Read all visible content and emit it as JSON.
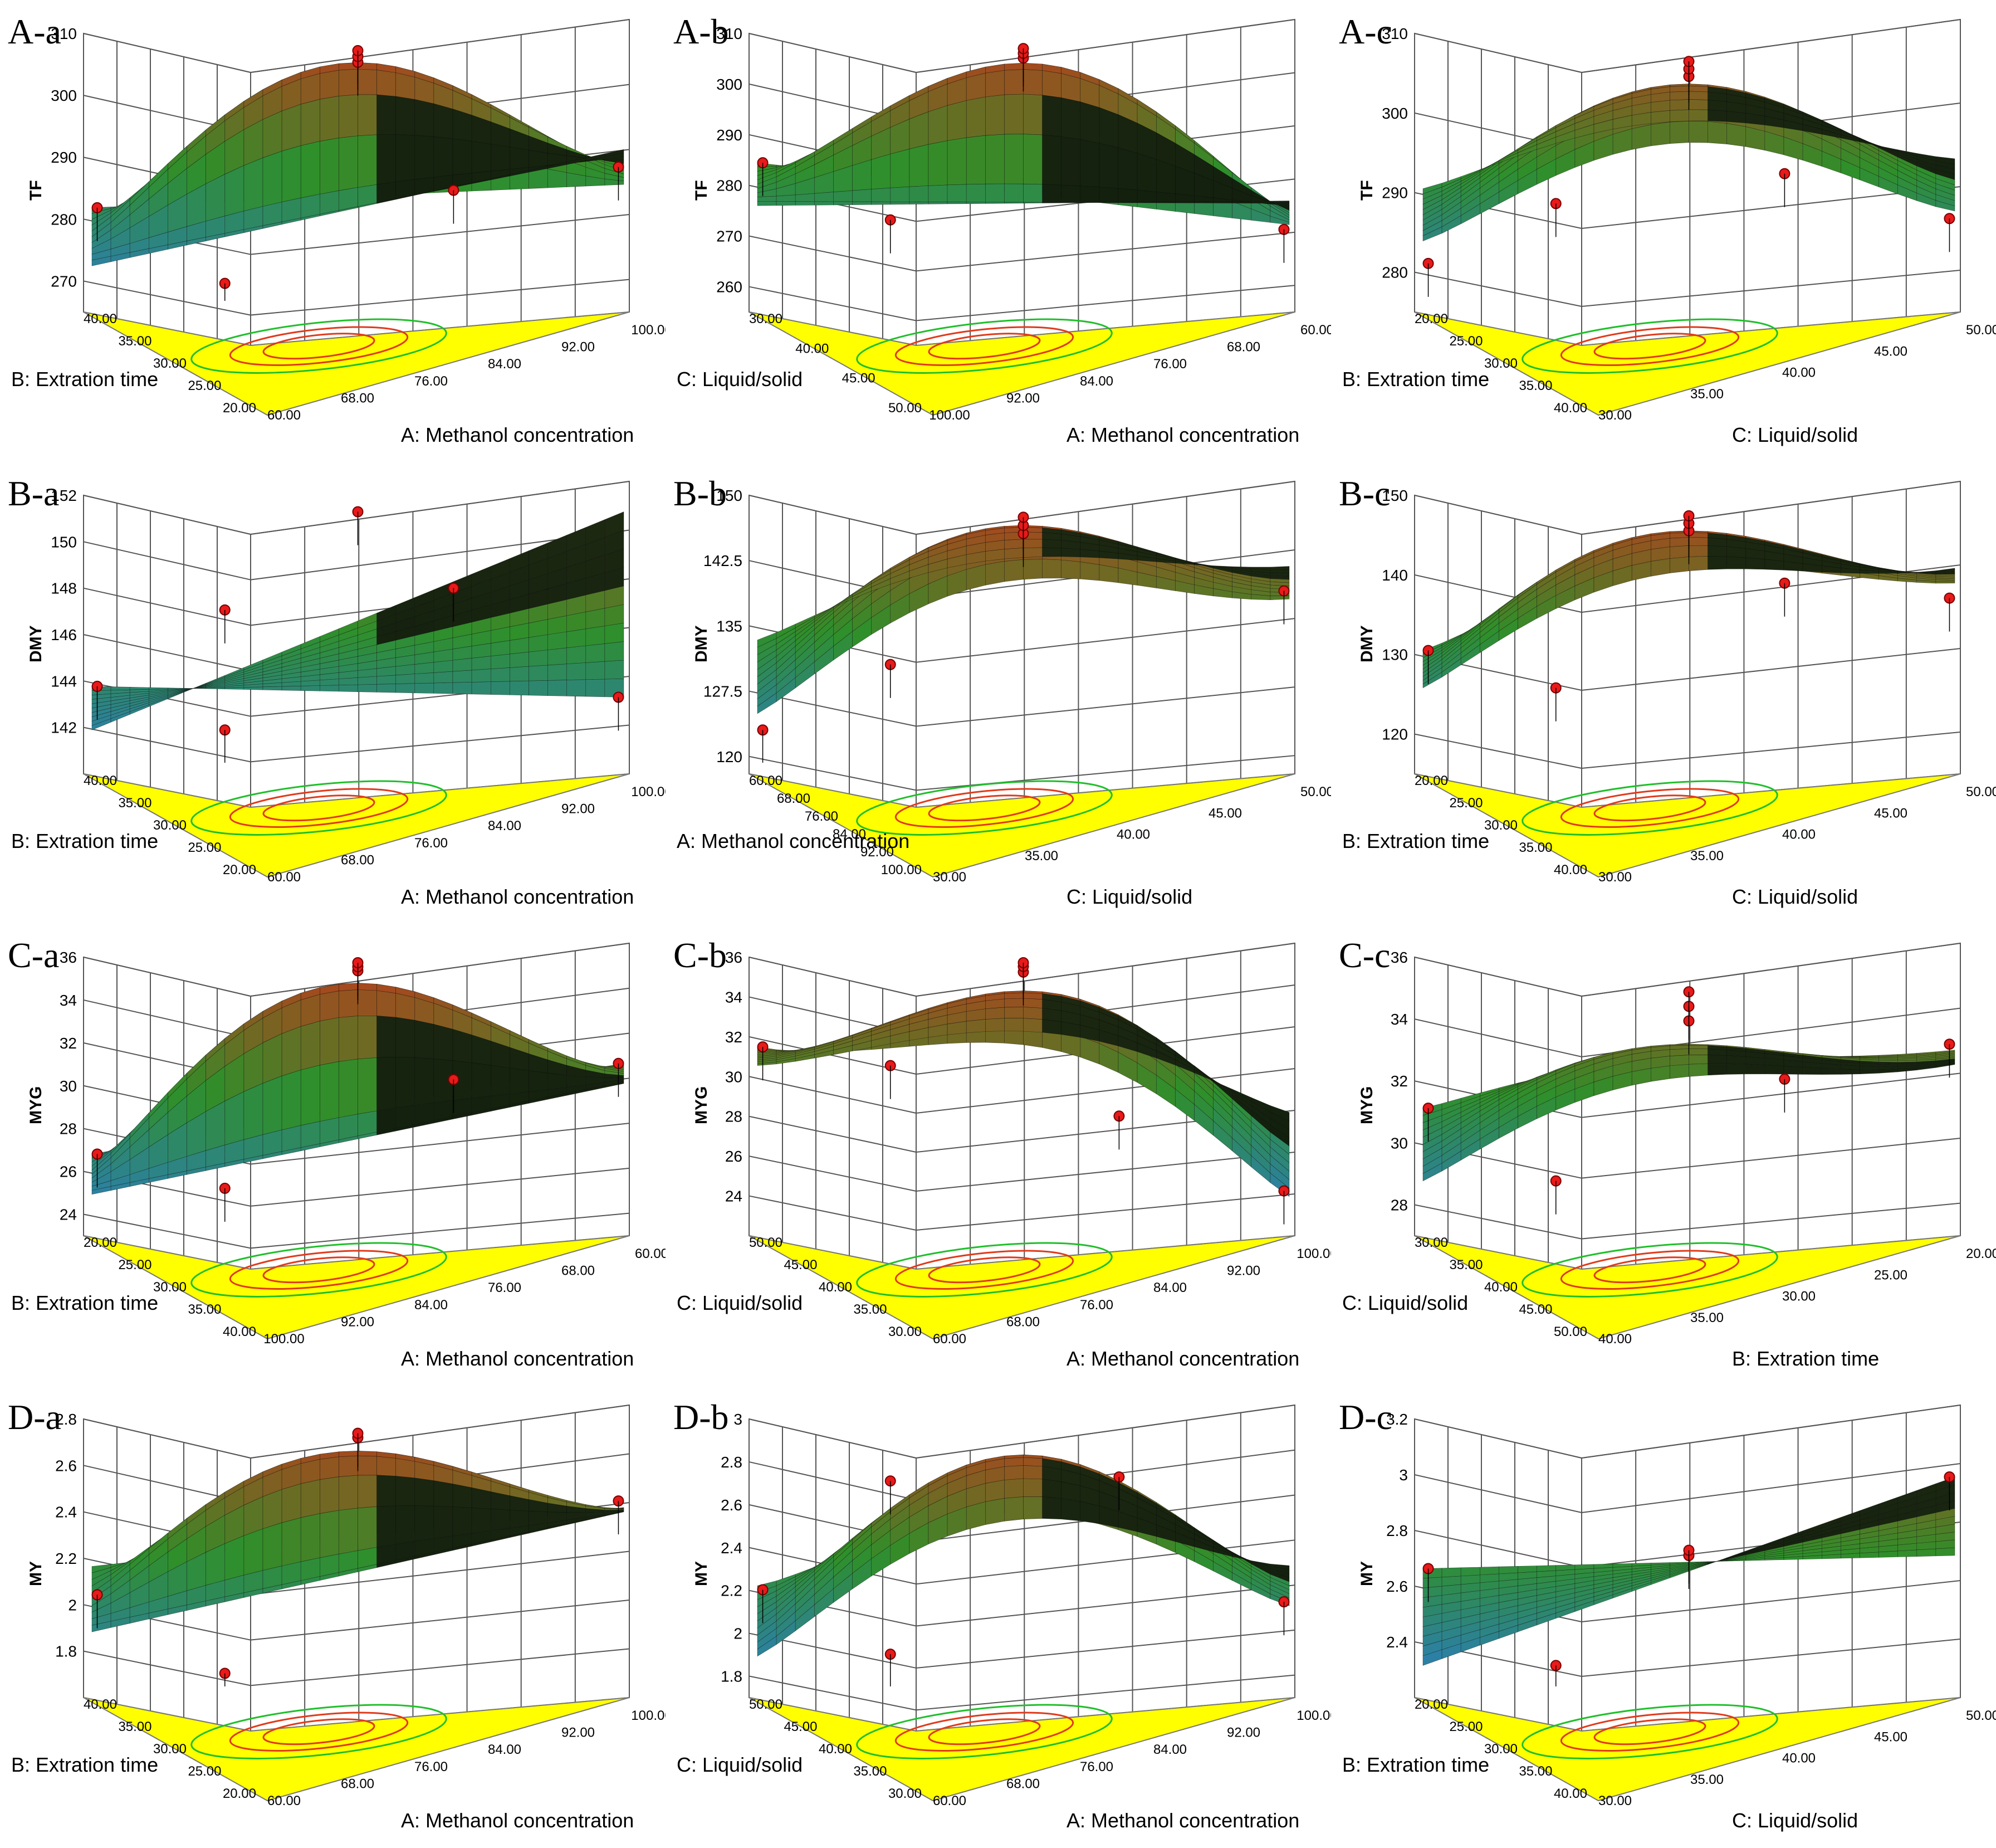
{
  "figure": {
    "colors": {
      "contour_floor": "#ffff00",
      "contour_inner": "#e03a1a",
      "contour_outer": "#1fbf2a",
      "design_point": "#e81a1a",
      "surface_high": "#c0391b",
      "surface_mid": "#2f8f2a",
      "surface_low": "#2b7cc8"
    }
  },
  "chart_data": [
    {
      "id": "A-a",
      "type": "surface3d",
      "zlabel": "TF",
      "ztick_labels": [
        "310",
        "300",
        "290",
        "280",
        "270"
      ],
      "zlim": [
        265,
        310
      ],
      "left_axis": {
        "label": "B: Extration time",
        "ticks": [
          "40.00",
          "35.00",
          "30.00",
          "25.00",
          "20.00"
        ]
      },
      "right_axis": {
        "label": "A: Methanol concentration",
        "ticks": [
          "60.00",
          "68.00",
          "76.00",
          "84.00",
          "92.00",
          "100.00"
        ]
      },
      "surface": {
        "kind": "saddle",
        "peak": 306,
        "corners": [
          281,
          271,
          291,
          285
        ]
      },
      "design_points": [
        281,
        268,
        306,
        307,
        308,
        284,
        288
      ]
    },
    {
      "id": "A-b",
      "type": "surface3d",
      "zlabel": "TF",
      "ztick_labels": [
        "310",
        "300",
        "290",
        "280",
        "270",
        "260"
      ],
      "zlim": [
        255,
        310
      ],
      "left_axis": {
        "label": "C: Liquid/solid",
        "ticks": [
          "30.00",
          "40.00",
          "45.00",
          "50.00"
        ]
      },
      "right_axis": {
        "label": "A: Methanol concentration",
        "ticks": [
          "100.00",
          "92.00",
          "84.00",
          "76.00",
          "68.00",
          "60.00"
        ]
      },
      "surface": {
        "kind": "saddle",
        "peak": 305,
        "corners": [
          284,
          275,
          276,
          271
        ]
      },
      "design_points": [
        284,
        272,
        306,
        307,
        308,
        270
      ]
    },
    {
      "id": "A-c",
      "type": "surface3d",
      "zlabel": "TF",
      "ztick_labels": [
        "310",
        "300",
        "290",
        "280"
      ],
      "zlim": [
        275,
        310
      ],
      "left_axis": {
        "label": "B: Extration time",
        "ticks": [
          "20.00",
          "25.00",
          "30.00",
          "35.00",
          "40.00"
        ]
      },
      "right_axis": {
        "label": "C: Liquid/solid",
        "ticks": [
          "30.00",
          "35.00",
          "40.00",
          "45.00",
          "50.00"
        ]
      },
      "surface": {
        "kind": "dome",
        "peak": 304,
        "corners": [
          283,
          290,
          294,
          287
        ]
      },
      "design_points": [
        280,
        288,
        305,
        306,
        307,
        292,
        286
      ]
    },
    {
      "id": "B-a",
      "type": "surface3d",
      "zlabel": "DMY",
      "ztick_labels": [
        "152",
        "150",
        "148",
        "146",
        "144",
        "142"
      ],
      "zlim": [
        140,
        152
      ],
      "left_axis": {
        "label": "B: Extration time",
        "ticks": [
          "40.00",
          "35.00",
          "30.00",
          "25.00",
          "20.00"
        ]
      },
      "right_axis": {
        "label": "A: Methanol concentration",
        "ticks": [
          "60.00",
          "68.00",
          "76.00",
          "84.00",
          "92.00",
          "100.00"
        ]
      },
      "surface": {
        "kind": "ridge",
        "peak": 151.5,
        "corners": [
          143.5,
          141.5,
          151.5,
          143
        ]
      },
      "design_points": [
        143.5,
        141.5,
        147,
        148,
        151.5,
        143
      ]
    },
    {
      "id": "B-b",
      "type": "surface3d",
      "zlabel": "DMY",
      "ztick_labels": [
        "150",
        "142.5",
        "135",
        "127.5",
        "120"
      ],
      "zlim": [
        118,
        150
      ],
      "left_axis": {
        "label": "A: Methanol concentration",
        "ticks": [
          "60.00",
          "68.00",
          "76.00",
          "84.00",
          "92.00",
          "100.00"
        ]
      },
      "right_axis": {
        "label": "C: Liquid/solid",
        "ticks": [
          "30.00",
          "35.00",
          "40.00",
          "45.00",
          "50.00"
        ]
      },
      "surface": {
        "kind": "dome",
        "peak": 147,
        "corners": [
          124,
          133,
          142,
          138
        ]
      },
      "design_points": [
        122,
        130,
        146,
        147,
        148,
        139
      ]
    },
    {
      "id": "B-c",
      "type": "surface3d",
      "zlabel": "DMY",
      "ztick_labels": [
        "150",
        "140",
        "130",
        "120"
      ],
      "zlim": [
        115,
        150
      ],
      "left_axis": {
        "label": "B: Extration time",
        "ticks": [
          "20.00",
          "25.00",
          "30.00",
          "35.00",
          "40.00"
        ]
      },
      "right_axis": {
        "label": "C: Liquid/solid",
        "ticks": [
          "30.00",
          "35.00",
          "40.00",
          "45.00",
          "50.00"
        ]
      },
      "surface": {
        "kind": "dome",
        "peak": 146,
        "corners": [
          130,
          125,
          141,
          139
        ]
      },
      "design_points": [
        130,
        125,
        146,
        147,
        148,
        139,
        137
      ]
    },
    {
      "id": "C-a",
      "type": "surface3d",
      "zlabel": "MYG",
      "ztick_labels": [
        "36",
        "34",
        "32",
        "30",
        "28",
        "26",
        "24"
      ],
      "zlim": [
        23,
        36
      ],
      "left_axis": {
        "label": "B: Extration time",
        "ticks": [
          "20.00",
          "25.00",
          "30.00",
          "35.00",
          "40.00"
        ]
      },
      "right_axis": {
        "label": "A: Methanol concentration",
        "ticks": [
          "100.00",
          "92.00",
          "84.00",
          "76.00",
          "68.00",
          "60.00"
        ]
      },
      "surface": {
        "kind": "saddle",
        "peak": 35,
        "corners": [
          26.5,
          24.5,
          30,
          31
        ]
      },
      "design_points": [
        26.5,
        24.8,
        35.6,
        35.8,
        36,
        30.2,
        31
      ]
    },
    {
      "id": "C-b",
      "type": "surface3d",
      "zlabel": "MYG",
      "ztick_labels": [
        "36",
        "34",
        "32",
        "30",
        "28",
        "26",
        "24"
      ],
      "zlim": [
        22,
        36
      ],
      "left_axis": {
        "label": "C: Liquid/solid",
        "ticks": [
          "50.00",
          "45.00",
          "40.00",
          "35.00",
          "30.00"
        ]
      },
      "right_axis": {
        "label": "A: Methanol concentration",
        "ticks": [
          "60.00",
          "68.00",
          "76.00",
          "84.00",
          "92.00",
          "100.00"
        ]
      },
      "surface": {
        "kind": "dome",
        "peak": 34.5,
        "corners": [
          31.5,
          30.5,
          28,
          23.5
        ]
      },
      "design_points": [
        31.5,
        30.5,
        35.5,
        35.8,
        36,
        27.8,
        23.8
      ]
    },
    {
      "id": "C-c",
      "type": "surface3d",
      "zlabel": "MYG",
      "ztick_labels": [
        "36",
        "34",
        "32",
        "30",
        "28"
      ],
      "zlim": [
        27,
        36
      ],
      "left_axis": {
        "label": "C: Liquid/solid",
        "ticks": [
          "30.00",
          "35.00",
          "40.00",
          "45.00",
          "50.00"
        ]
      },
      "right_axis": {
        "label": "B: Extration time",
        "ticks": [
          "40.00",
          "35.00",
          "30.00",
          "25.00",
          "20.00"
        ]
      },
      "surface": {
        "kind": "dome",
        "peak": 33.2,
        "corners": [
          31,
          28.5,
          32.5,
          33
        ]
      },
      "design_points": [
        31,
        28.5,
        34,
        34.5,
        35,
        32,
        33.2
      ]
    },
    {
      "id": "D-a",
      "type": "surface3d",
      "zlabel": "MY",
      "ztick_labels": [
        "2.8",
        "2.6",
        "2.4",
        "2.2",
        "2",
        "1.8"
      ],
      "zlim": [
        1.6,
        2.8
      ],
      "left_axis": {
        "label": "B: Extration time",
        "ticks": [
          "40.00",
          "35.00",
          "30.00",
          "25.00",
          "20.00"
        ]
      },
      "right_axis": {
        "label": "A: Methanol concentration",
        "ticks": [
          "60.00",
          "68.00",
          "76.00",
          "84.00",
          "92.00",
          "100.00"
        ]
      },
      "surface": {
        "kind": "saddle",
        "peak": 2.68,
        "corners": [
          2.15,
          1.85,
          2.4,
          2.42
        ]
      },
      "design_points": [
        2.02,
        1.66,
        2.74,
        2.76,
        2.45
      ]
    },
    {
      "id": "D-b",
      "type": "surface3d",
      "zlabel": "MY",
      "ztick_labels": [
        "3",
        "2.8",
        "2.6",
        "2.4",
        "2.2",
        "2",
        "1.8"
      ],
      "zlim": [
        1.7,
        3
      ],
      "left_axis": {
        "label": "C: Liquid/solid",
        "ticks": [
          "50.00",
          "45.00",
          "40.00",
          "35.00",
          "30.00"
        ]
      },
      "right_axis": {
        "label": "A: Methanol concentration",
        "ticks": [
          "60.00",
          "68.00",
          "76.00",
          "84.00",
          "92.00",
          "100.00"
        ]
      },
      "surface": {
        "kind": "dome",
        "peak": 2.85,
        "corners": [
          2.2,
          1.85,
          2.3,
          2.1
        ]
      },
      "design_points": [
        2.18,
        1.86,
        2.72,
        2.74,
        2.12
      ]
    },
    {
      "id": "D-c",
      "type": "surface3d",
      "zlabel": "MY",
      "ztick_labels": [
        "3.2",
        "3",
        "2.8",
        "2.6",
        "2.4"
      ],
      "zlim": [
        2.2,
        3.2
      ],
      "left_axis": {
        "label": "B: Extration time",
        "ticks": [
          "20.00",
          "25.00",
          "30.00",
          "35.00",
          "40.00"
        ]
      },
      "right_axis": {
        "label": "C: Liquid/solid",
        "ticks": [
          "30.00",
          "35.00",
          "40.00",
          "45.00",
          "50.00"
        ]
      },
      "surface": {
        "kind": "bowl",
        "peak": 2.7,
        "corners": [
          2.65,
          2.28,
          3.0,
          2.7
        ]
      },
      "design_points": [
        2.65,
        2.28,
        2.7,
        2.72,
        3.0
      ]
    }
  ]
}
